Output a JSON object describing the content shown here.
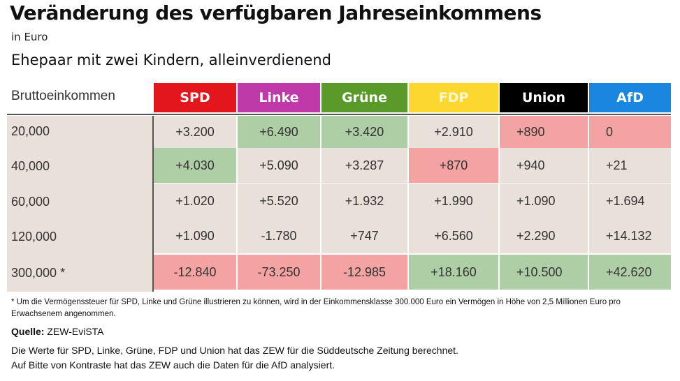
{
  "title": "Veränderung des verfügbaren Jahreseinkommens",
  "unit": "in Euro",
  "subtitle": "Ehepaar mit zwei Kindern, alleinverdienend",
  "table": {
    "row_header": "Bruttoeinkommen",
    "columns": [
      {
        "label": "SPD",
        "color": "#e3161b"
      },
      {
        "label": "Linke",
        "color": "#bf3aa8"
      },
      {
        "label": "Grüne",
        "color": "#5a9a2a"
      },
      {
        "label": "FDP",
        "color": "#fcd72f"
      },
      {
        "label": "Union",
        "color": "#000000"
      },
      {
        "label": "AfD",
        "color": "#1a86e0"
      }
    ],
    "rows": [
      {
        "income": "20,000",
        "values": [
          "+3.200",
          "+6.490",
          "+3.420",
          "+2.910",
          "+890",
          "0"
        ],
        "highlight": [
          "",
          "green",
          "green",
          "",
          "red",
          "red"
        ]
      },
      {
        "income": "40,000",
        "values": [
          "+4.030",
          "+5.090",
          "+3.287",
          "+870",
          "+940",
          "+21"
        ],
        "highlight": [
          "green",
          "",
          "",
          "red",
          "",
          ""
        ]
      },
      {
        "income": "60,000",
        "values": [
          "+1.020",
          "+5.520",
          "+1.932",
          "+1.990",
          "+1.090",
          "+1.694"
        ],
        "highlight": [
          "",
          "",
          "",
          "",
          "",
          ""
        ]
      },
      {
        "income": "120,000",
        "values": [
          "+1.090",
          "-1.780",
          "+747",
          "+6.560",
          "+2.290",
          "+14.132"
        ],
        "highlight": [
          "",
          "",
          "",
          "",
          "",
          ""
        ]
      },
      {
        "income": "300,000 *",
        "values": [
          "-12.840",
          "-73.250",
          "-12.985",
          "+18.160",
          "+10.500",
          "+42.620"
        ],
        "highlight": [
          "red",
          "red",
          "red",
          "green",
          "green",
          "green"
        ]
      }
    ]
  },
  "footnote": "* Um die Vermögenssteuer für SPD, Linke und Grüne illustrieren zu können, wird in der Einkommensklasse 300.000 Euro ein Vermögen in Höhe von 2,5 Millionen Euro pro Erwachsenem angenommen.",
  "source_label": "Quelle:",
  "source_value": "ZEW-EviSTA",
  "note_line1": "Die Werte für SPD, Linke, Grüne, FDP und Union hat das ZEW für die Süddeutsche Zeitung berechnet.",
  "note_line2": "Auf Bitte von Kontraste hat das ZEW auch die Daten für die AfD analysiert.",
  "colors": {
    "green_highlight": "#aecfa6",
    "red_highlight": "#f4a3a3",
    "neutral": "#e9e0da"
  }
}
